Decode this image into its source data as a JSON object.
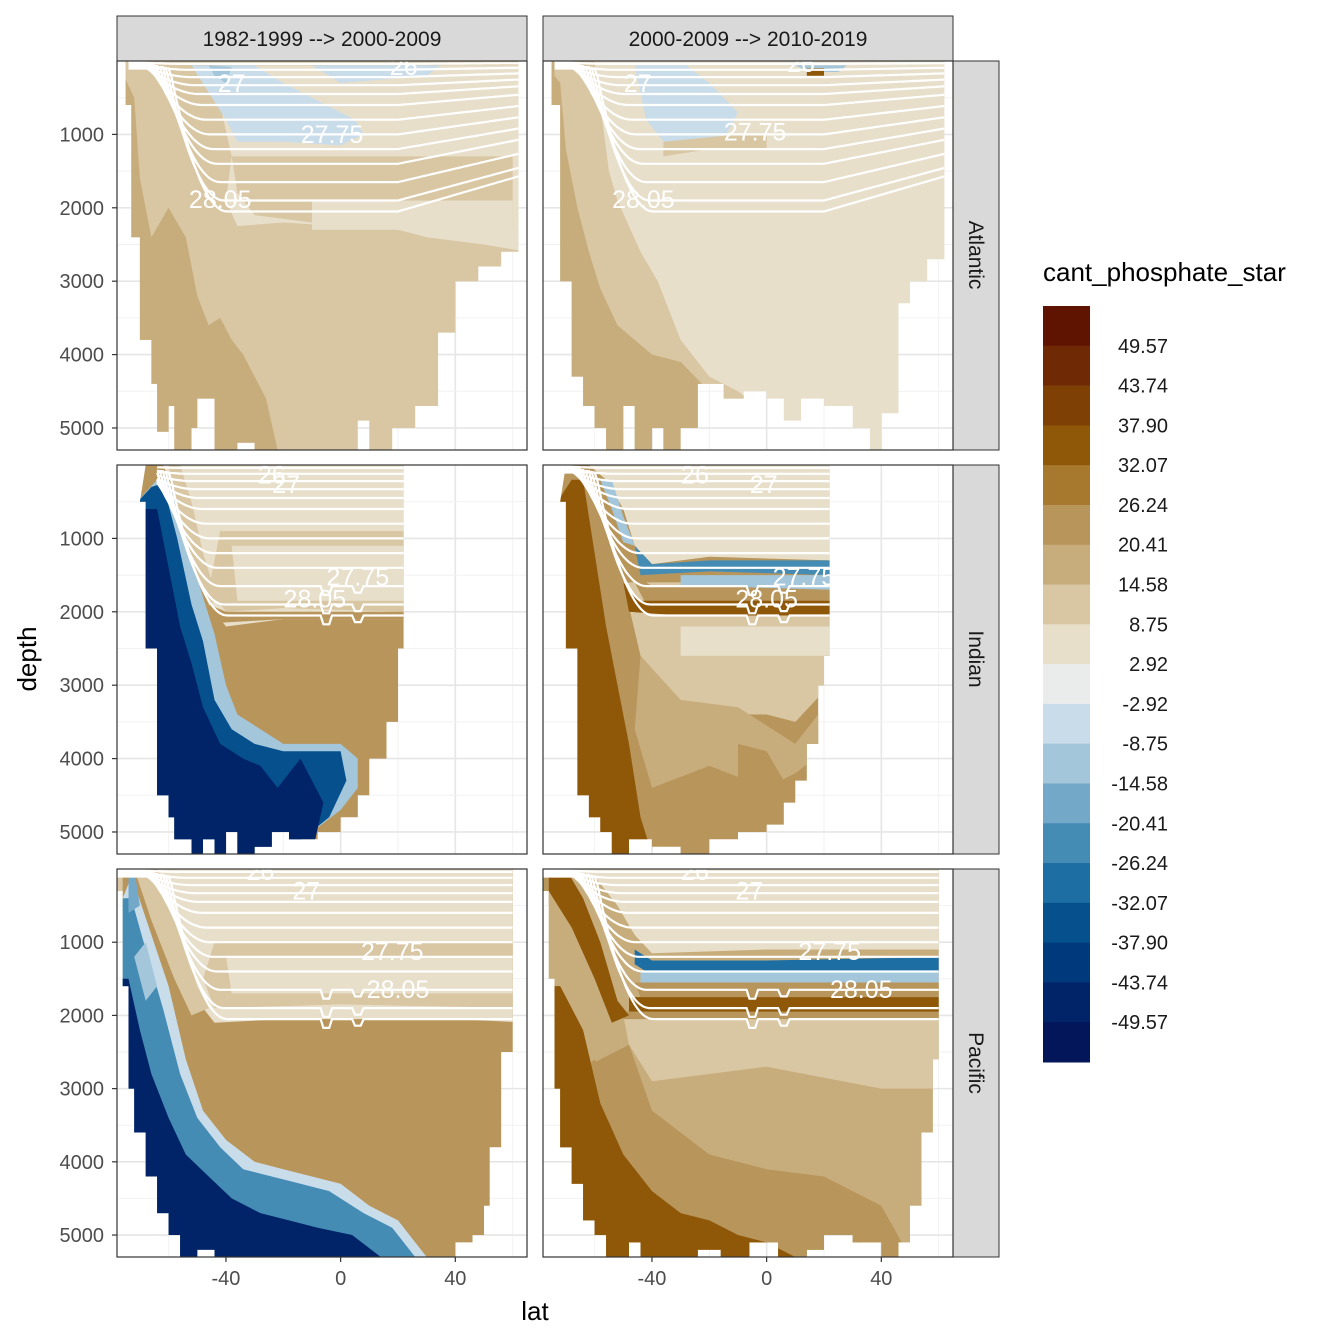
{
  "chart_data": {
    "type": "heatmap",
    "subtype": "faceted-filled-contour",
    "xlabel": "lat",
    "ylabel": "depth",
    "xlim": [
      -78,
      65
    ],
    "ylim": [
      5300,
      0
    ],
    "y_reversed": true,
    "x_ticks": [
      -40,
      0,
      40
    ],
    "y_ticks": [
      1000,
      2000,
      3000,
      4000,
      5000
    ],
    "grid": true,
    "facet_columns": [
      "1982-1999 --> 2000-2009",
      "2000-2009 --> 2010-2019"
    ],
    "facet_rows": [
      "Atlantic",
      "Indian",
      "Pacific"
    ],
    "legend": {
      "title": "cant_phosphate_star",
      "position": "right",
      "labels": [
        "49.57",
        "43.74",
        "37.90",
        "32.07",
        "26.24",
        "20.41",
        "14.58",
        "8.75",
        "2.92",
        "-2.92",
        "-8.75",
        "-14.58",
        "-20.41",
        "-26.24",
        "-32.07",
        "-37.90",
        "-43.74",
        "-49.57"
      ],
      "colors": [
        "#5e1400",
        "#6f2a05",
        "#7f4006",
        "#8f5708",
        "#a6792e",
        "#b8955a",
        "#c8ad7c",
        "#d9c6a3",
        "#e8dfcb",
        "#eaecec",
        "#c9dcea",
        "#a3c6db",
        "#74a8c8",
        "#458cb5",
        "#1d6ea3",
        "#05508d",
        "#003a7c",
        "#012368",
        "#03165a"
      ]
    },
    "isopycnal_labels": [
      "26",
      "27",
      "27.75",
      "28.05"
    ],
    "panels": [
      {
        "column": 0,
        "row": 0,
        "ocean": "Atlantic",
        "lat_range": [
          -75,
          62
        ],
        "max_depth": [
          [
            -75,
            500
          ],
          [
            -70,
            5000
          ],
          [
            -55,
            5300
          ],
          [
            -40,
            5300
          ],
          [
            -20,
            5300
          ],
          [
            0,
            5300
          ],
          [
            20,
            5200
          ],
          [
            40,
            3500
          ],
          [
            55,
            1500
          ],
          [
            62,
            800
          ]
        ],
        "layers": [
          {
            "value_class": 8.75,
            "from_depth": 0,
            "to_depth": 5300
          },
          {
            "value_class": 14.58,
            "lat_min": -75,
            "lat_max": -20,
            "boundary": [
              [
                -75,
                2000
              ],
              [
                -60,
                2500
              ],
              [
                -45,
                3500
              ],
              [
                -30,
                4000
              ],
              [
                -20,
                5300
              ]
            ]
          },
          {
            "value_class": -2.92,
            "lat_min": -45,
            "lat_max": 62,
            "boundary": [
              [
                -45,
                200
              ],
              [
                -35,
                400
              ],
              [
                -30,
                1200
              ],
              [
                0,
                1100
              ],
              [
                20,
                900
              ],
              [
                62,
                500
              ]
            ]
          },
          {
            "value_class": 2.92,
            "lat_min": -30,
            "lat_max": 62,
            "boundary": [
              [
                -30,
                2200
              ],
              [
                0,
                2300
              ],
              [
                30,
                2400
              ],
              [
                62,
                2800
              ]
            ]
          }
        ]
      },
      {
        "column": 1,
        "row": 0,
        "ocean": "Atlantic",
        "lat_range": [
          -75,
          62
        ],
        "layers": [
          {
            "value_class": 14.58,
            "lat_min": -75,
            "lat_max": -35
          },
          {
            "value_class": 8.75,
            "lat_min": -35,
            "lat_max": 30
          },
          {
            "value_class": 2.92,
            "lat_min": -50,
            "lat_max": 62
          },
          {
            "value_class": -2.92,
            "lat_min": -45,
            "lat_max": 0
          }
        ]
      },
      {
        "column": 0,
        "row": 1,
        "ocean": "Indian",
        "lat_range": [
          -68,
          22
        ],
        "layers": [
          {
            "value_class": -49.57,
            "lat_min": -68,
            "lat_max": -5
          },
          {
            "value_class": 20.41,
            "lat_min": -55,
            "lat_max": 22
          },
          {
            "value_class": 2.92,
            "lat_min": -60,
            "lat_max": 22
          }
        ]
      },
      {
        "column": 1,
        "row": 1,
        "ocean": "Indian",
        "lat_range": [
          -70,
          22
        ],
        "layers": [
          {
            "value_class": 32.07,
            "lat_min": -70,
            "lat_max": 5
          },
          {
            "value_class": 8.75,
            "lat_min": -45,
            "lat_max": 22
          },
          {
            "value_class": -26.24,
            "lat_min": -50,
            "lat_max": 22
          },
          {
            "value_class": 2.92,
            "lat_min": -60,
            "lat_max": 22
          }
        ]
      },
      {
        "column": 0,
        "row": 2,
        "ocean": "Pacific",
        "lat_range": [
          -78,
          60
        ],
        "layers": [
          {
            "value_class": -49.57,
            "lat_min": -78,
            "lat_max": 35
          },
          {
            "value_class": 20.41,
            "lat_min": -50,
            "lat_max": 60
          },
          {
            "value_class": 2.92,
            "lat_min": -65,
            "lat_max": 60
          }
        ]
      },
      {
        "column": 1,
        "row": 2,
        "ocean": "Pacific",
        "lat_range": [
          -78,
          60
        ],
        "layers": [
          {
            "value_class": 32.07,
            "lat_min": -78,
            "lat_max": 20
          },
          {
            "value_class": 14.58,
            "lat_min": -40,
            "lat_max": 60
          },
          {
            "value_class": -32.07,
            "lat_min": -45,
            "lat_max": 60
          },
          {
            "value_class": 2.92,
            "lat_min": -65,
            "lat_max": 60
          }
        ]
      }
    ]
  }
}
